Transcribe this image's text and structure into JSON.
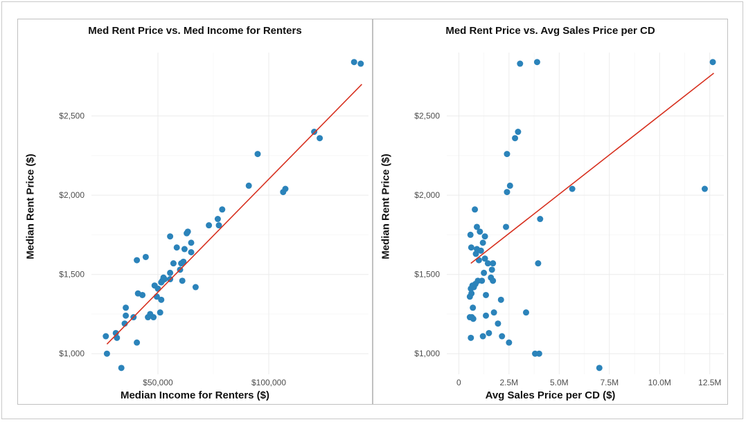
{
  "colors": {
    "point": "#2b83ba",
    "fit": "#d7301f",
    "grid": "#ebebeb"
  },
  "chart_data": [
    {
      "type": "scatter",
      "title": "Med Rent Price vs. Med Income for Renters",
      "xlabel": "Median Income for Renters ($)",
      "ylabel": "Median Rent Price ($)",
      "xlim": [
        20000,
        145000
      ],
      "ylim": [
        870,
        2900
      ],
      "xticks": [
        {
          "value": 50000,
          "label": "$50,000"
        },
        {
          "value": 100000,
          "label": "$100,000"
        }
      ],
      "yticks": [
        {
          "value": 1000,
          "label": "$1,000"
        },
        {
          "value": 1500,
          "label": "$1,500"
        },
        {
          "value": 2000,
          "label": "$2,000"
        },
        {
          "value": 2500,
          "label": "$2,500"
        }
      ],
      "trend": {
        "x": [
          27000,
          142000
        ],
        "y": [
          1060,
          2700
        ]
      },
      "points": [
        [
          26500,
          1110
        ],
        [
          27000,
          1000
        ],
        [
          31000,
          1130
        ],
        [
          31500,
          1100
        ],
        [
          33500,
          910
        ],
        [
          35000,
          1190
        ],
        [
          35500,
          1240
        ],
        [
          35500,
          1290
        ],
        [
          39000,
          1230
        ],
        [
          40500,
          1590
        ],
        [
          40500,
          1070
        ],
        [
          41000,
          1380
        ],
        [
          43000,
          1370
        ],
        [
          44500,
          1610
        ],
        [
          45500,
          1230
        ],
        [
          46500,
          1250
        ],
        [
          48000,
          1230
        ],
        [
          48500,
          1430
        ],
        [
          49500,
          1360
        ],
        [
          50000,
          1410
        ],
        [
          51000,
          1260
        ],
        [
          51500,
          1340
        ],
        [
          51500,
          1450
        ],
        [
          52000,
          1460
        ],
        [
          52500,
          1480
        ],
        [
          53000,
          1470
        ],
        [
          55500,
          1470
        ],
        [
          55500,
          1510
        ],
        [
          55500,
          1740
        ],
        [
          57000,
          1570
        ],
        [
          58500,
          1670
        ],
        [
          60000,
          1530
        ],
        [
          60500,
          1570
        ],
        [
          61000,
          1460
        ],
        [
          61500,
          1580
        ],
        [
          62000,
          1660
        ],
        [
          63000,
          1760
        ],
        [
          63500,
          1770
        ],
        [
          65000,
          1640
        ],
        [
          65000,
          1700
        ],
        [
          67000,
          1420
        ],
        [
          73000,
          1810
        ],
        [
          77000,
          1850
        ],
        [
          77500,
          1810
        ],
        [
          79000,
          1910
        ],
        [
          91000,
          2060
        ],
        [
          95000,
          2260
        ],
        [
          106500,
          2020
        ],
        [
          107500,
          2040
        ],
        [
          120500,
          2400
        ],
        [
          123000,
          2360
        ],
        [
          138500,
          2840
        ],
        [
          141500,
          2830
        ]
      ]
    },
    {
      "type": "scatter",
      "title": "Med Rent Price vs. Avg Sales Price per CD",
      "xlabel": "Avg Sales Price per CD ($)",
      "ylabel": "Median Rent Price ($)",
      "xlim": [
        -600000,
        13200000
      ],
      "ylim": [
        870,
        2900
      ],
      "xticks": [
        {
          "value": 0,
          "label": "0"
        },
        {
          "value": 2500000,
          "label": "2.5M"
        },
        {
          "value": 5000000,
          "label": "5.0M"
        },
        {
          "value": 7500000,
          "label": "7.5M"
        },
        {
          "value": 10000000,
          "label": "10.0M"
        },
        {
          "value": 12500000,
          "label": "12.5M"
        }
      ],
      "yticks": [
        {
          "value": 1000,
          "label": "$1,000"
        },
        {
          "value": 1500,
          "label": "$1,500"
        },
        {
          "value": 2000,
          "label": "$2,000"
        },
        {
          "value": 2500,
          "label": "$2,500"
        }
      ],
      "trend": {
        "x": [
          600000,
          12700000
        ],
        "y": [
          1570,
          2770
        ]
      },
      "points": [
        [
          550000,
          1360
        ],
        [
          550000,
          1230
        ],
        [
          580000,
          1750
        ],
        [
          600000,
          1410
        ],
        [
          600000,
          1100
        ],
        [
          620000,
          1670
        ],
        [
          630000,
          1380
        ],
        [
          650000,
          1230
        ],
        [
          680000,
          1430
        ],
        [
          700000,
          1290
        ],
        [
          720000,
          1220
        ],
        [
          750000,
          1420
        ],
        [
          800000,
          1910
        ],
        [
          830000,
          1440
        ],
        [
          850000,
          1630
        ],
        [
          900000,
          1800
        ],
        [
          900000,
          1660
        ],
        [
          950000,
          1460
        ],
        [
          1000000,
          1590
        ],
        [
          1050000,
          1770
        ],
        [
          1100000,
          1650
        ],
        [
          1150000,
          1460
        ],
        [
          1200000,
          1700
        ],
        [
          1200000,
          1110
        ],
        [
          1250000,
          1510
        ],
        [
          1300000,
          1600
        ],
        [
          1300000,
          1740
        ],
        [
          1350000,
          1240
        ],
        [
          1350000,
          1370
        ],
        [
          1450000,
          1570
        ],
        [
          1500000,
          1130
        ],
        [
          1600000,
          1480
        ],
        [
          1650000,
          1530
        ],
        [
          1700000,
          1460
        ],
        [
          1700000,
          1570
        ],
        [
          1750000,
          1260
        ],
        [
          1950000,
          1190
        ],
        [
          2100000,
          1340
        ],
        [
          2150000,
          1110
        ],
        [
          2350000,
          1800
        ],
        [
          2400000,
          2260
        ],
        [
          2400000,
          2020
        ],
        [
          2500000,
          1070
        ],
        [
          2550000,
          2060
        ],
        [
          2800000,
          2360
        ],
        [
          2950000,
          2400
        ],
        [
          3050000,
          2830
        ],
        [
          3350000,
          1260
        ],
        [
          3800000,
          1000
        ],
        [
          3900000,
          2840
        ],
        [
          3950000,
          1570
        ],
        [
          4000000,
          1000
        ],
        [
          4050000,
          1850
        ],
        [
          5650000,
          2040
        ],
        [
          7000000,
          910
        ],
        [
          12250000,
          2040
        ],
        [
          12650000,
          2840
        ]
      ]
    }
  ]
}
